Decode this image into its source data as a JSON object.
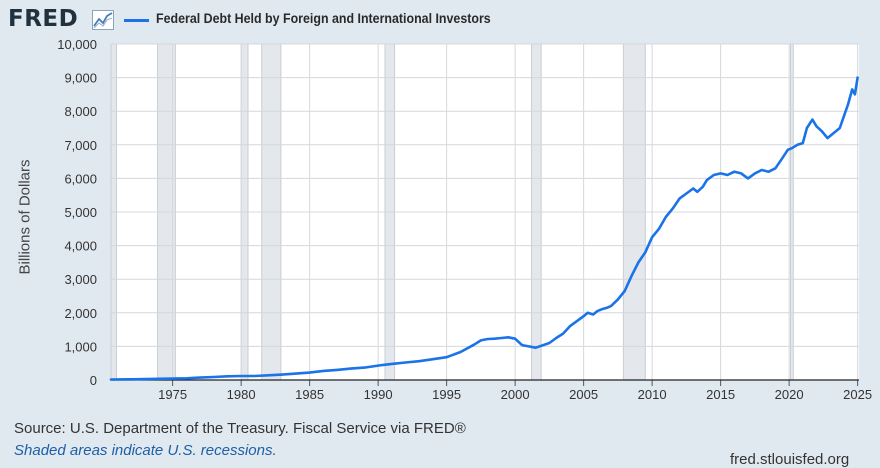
{
  "header": {
    "logo_text": "FRED",
    "logo_icon": "chart-line-icon"
  },
  "chart_data": {
    "type": "line",
    "title": "",
    "ylabel": "Billions of Dollars",
    "xlabel": "",
    "xlim": [
      1970.5,
      2025.1
    ],
    "ylim": [
      0,
      10000
    ],
    "grid": true,
    "legend_position": "top-left",
    "y_ticks": [
      0,
      1000,
      2000,
      3000,
      4000,
      5000,
      6000,
      7000,
      8000,
      9000,
      10000
    ],
    "y_tick_labels": [
      "0",
      "1,000",
      "2,000",
      "3,000",
      "4,000",
      "5,000",
      "6,000",
      "7,000",
      "8,000",
      "9,000",
      "10,000"
    ],
    "x_ticks": [
      1975,
      1980,
      1985,
      1990,
      1995,
      2000,
      2005,
      2010,
      2015,
      2020,
      2025
    ],
    "x_tick_labels": [
      "1975",
      "1980",
      "1985",
      "1990",
      "1995",
      "2000",
      "2005",
      "2010",
      "2015",
      "2020",
      "2025"
    ],
    "recessions": [
      [
        1970.0,
        1970.9
      ],
      [
        1973.9,
        1975.2
      ],
      [
        1980.0,
        1980.5
      ],
      [
        1981.5,
        1982.9
      ],
      [
        1990.5,
        1991.2
      ],
      [
        2001.2,
        2001.9
      ],
      [
        2007.9,
        2009.5
      ],
      [
        2020.1,
        2020.3
      ]
    ],
    "series": [
      {
        "name": "Federal Debt Held by Foreign and International Investors",
        "color": "#1a73e8",
        "x": [
          1970.5,
          1972,
          1974,
          1976,
          1977,
          1978,
          1979,
          1980,
          1981,
          1982,
          1983,
          1984,
          1985,
          1986,
          1987,
          1988,
          1989,
          1990,
          1991,
          1992,
          1993,
          1994,
          1995,
          1996,
          1997,
          1997.5,
          1998,
          1998.5,
          1999,
          1999.5,
          2000,
          2000.5,
          2001,
          2001.5,
          2002,
          2002.5,
          2003,
          2003.5,
          2004,
          2004.5,
          2005,
          2005.3,
          2005.7,
          2006,
          2006.3,
          2006.7,
          2007,
          2007.5,
          2008,
          2008.5,
          2009,
          2009.5,
          2010,
          2010.5,
          2011,
          2011.5,
          2012,
          2012.5,
          2013,
          2013.3,
          2013.7,
          2014,
          2014.5,
          2015,
          2015.5,
          2016,
          2016.5,
          2017,
          2017.5,
          2018,
          2018.5,
          2019,
          2019.5,
          2019.9,
          2020.2,
          2020.6,
          2021,
          2021.3,
          2021.7,
          2022,
          2022.4,
          2022.8,
          2023.1,
          2023.4,
          2023.7,
          2024,
          2024.3,
          2024.6,
          2024.8,
          2025.0
        ],
        "values": [
          15,
          20,
          35,
          50,
          70,
          90,
          110,
          120,
          120,
          140,
          160,
          190,
          220,
          270,
          300,
          340,
          370,
          430,
          480,
          520,
          560,
          620,
          680,
          830,
          1050,
          1180,
          1220,
          1230,
          1250,
          1270,
          1230,
          1040,
          1000,
          960,
          1030,
          1100,
          1250,
          1380,
          1600,
          1750,
          1900,
          2000,
          1950,
          2050,
          2100,
          2150,
          2200,
          2400,
          2650,
          3100,
          3500,
          3800,
          4250,
          4500,
          4850,
          5100,
          5400,
          5550,
          5700,
          5600,
          5750,
          5950,
          6100,
          6150,
          6100,
          6200,
          6150,
          6000,
          6150,
          6250,
          6200,
          6300,
          6600,
          6850,
          6900,
          7000,
          7050,
          7500,
          7750,
          7550,
          7400,
          7200,
          7300,
          7400,
          7500,
          7850,
          8200,
          8650,
          8500,
          9000
        ]
      }
    ]
  },
  "footer": {
    "source": "Source: U.S. Department of the Treasury. Fiscal Service via FRED®",
    "shaded_note": "Shaded areas indicate U.S. recessions.",
    "url": "fred.stlouisfed.org"
  }
}
